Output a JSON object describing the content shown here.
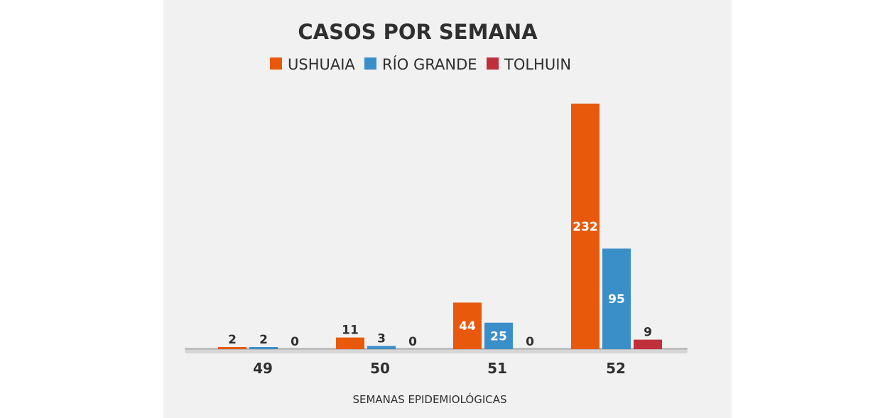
{
  "chart_data": {
    "type": "bar",
    "title": "CASOS POR SEMANA",
    "xlabel": "SEMANAS EPIDEMIOLÓGICAS",
    "ylabel": "",
    "categories": [
      "49",
      "50",
      "51",
      "52"
    ],
    "series": [
      {
        "name": "USHUAIA",
        "color": "#e8590c",
        "values": [
          2,
          11,
          44,
          232
        ]
      },
      {
        "name": "RÍO GRANDE",
        "color": "#3b8fc9",
        "values": [
          2,
          3,
          25,
          95
        ]
      },
      {
        "name": "TOLHUIN",
        "color": "#c0303c",
        "values": [
          0,
          0,
          0,
          9
        ]
      }
    ],
    "ylim": [
      0,
      232
    ],
    "grid": false,
    "legend_position": "top-center",
    "label_colors": {
      "inside": "#ffffff",
      "outside": "#2f2f2f"
    }
  }
}
